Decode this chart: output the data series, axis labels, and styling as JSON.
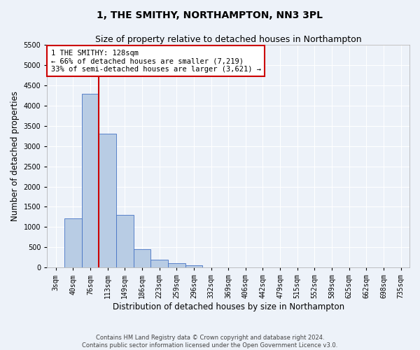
{
  "title": "1, THE SMITHY, NORTHAMPTON, NN3 3PL",
  "subtitle": "Size of property relative to detached houses in Northampton",
  "xlabel": "Distribution of detached houses by size in Northampton",
  "ylabel": "Number of detached properties",
  "footer_line1": "Contains HM Land Registry data © Crown copyright and database right 2024.",
  "footer_line2": "Contains public sector information licensed under the Open Government Licence v3.0.",
  "categories": [
    "3sqm",
    "40sqm",
    "76sqm",
    "113sqm",
    "149sqm",
    "186sqm",
    "223sqm",
    "259sqm",
    "296sqm",
    "332sqm",
    "369sqm",
    "406sqm",
    "442sqm",
    "479sqm",
    "515sqm",
    "552sqm",
    "589sqm",
    "625sqm",
    "662sqm",
    "698sqm",
    "735sqm"
  ],
  "bar_values": [
    0,
    1220,
    4300,
    3300,
    1300,
    450,
    200,
    100,
    60,
    0,
    0,
    0,
    0,
    0,
    0,
    0,
    0,
    0,
    0,
    0,
    0
  ],
  "bar_color": "#b8cce4",
  "bar_edge_color": "#4472c4",
  "ylim": [
    0,
    5500
  ],
  "property_line_x": 2.5,
  "property_line_color": "#cc0000",
  "annotation_text_line1": "1 THE SMITHY: 128sqm",
  "annotation_text_line2": "← 66% of detached houses are smaller (7,219)",
  "annotation_text_line3": "33% of semi-detached houses are larger (3,621) →",
  "annotation_box_color": "#cc0000",
  "background_color": "#edf2f9",
  "plot_bg_color": "#edf2f9",
  "grid_color": "#ffffff",
  "title_fontsize": 10,
  "subtitle_fontsize": 9,
  "label_fontsize": 8.5,
  "tick_fontsize": 7,
  "annot_fontsize": 7.5
}
